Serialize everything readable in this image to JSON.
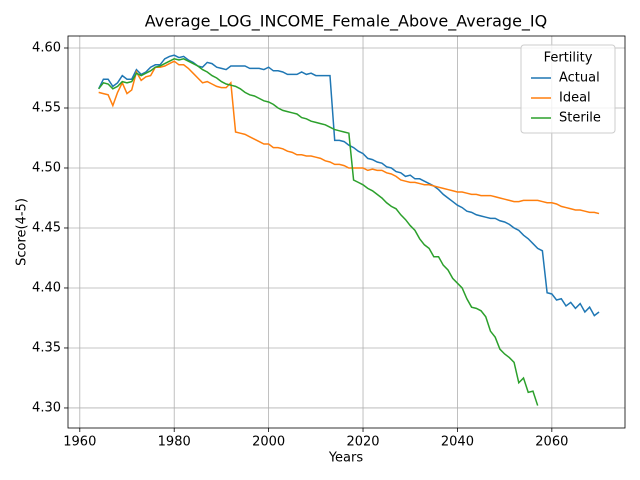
{
  "chart_data": {
    "type": "line",
    "title": "Average_LOG_INCOME_Female_Above_Average_IQ",
    "xlabel": "Years",
    "ylabel": "Score(4-5)",
    "x": [
      1964,
      1965,
      1966,
      1967,
      1968,
      1969,
      1970,
      1971,
      1972,
      1973,
      1974,
      1975,
      1976,
      1977,
      1978,
      1979,
      1980,
      1981,
      1982,
      1983,
      1984,
      1985,
      1986,
      1987,
      1988,
      1989,
      1990,
      1991,
      1992,
      1993,
      1994,
      1995,
      1996,
      1997,
      1998,
      1999,
      2000,
      2001,
      2002,
      2003,
      2004,
      2005,
      2006,
      2007,
      2008,
      2009,
      2010,
      2011,
      2012,
      2013,
      2014,
      2015,
      2016,
      2017,
      2018,
      2019,
      2020,
      2021,
      2022,
      2023,
      2024,
      2025,
      2026,
      2027,
      2028,
      2029,
      2030,
      2031,
      2032,
      2033,
      2034,
      2035,
      2036,
      2037,
      2038,
      2039,
      2040,
      2041,
      2042,
      2043,
      2044,
      2045,
      2046,
      2047,
      2048,
      2049,
      2050,
      2051,
      2052,
      2053,
      2054,
      2055,
      2056,
      2057,
      2058,
      2059,
      2060,
      2061,
      2062,
      2063,
      2064,
      2065,
      2066,
      2067,
      2068,
      2069,
      2070
    ],
    "series": [
      {
        "name": "Actual",
        "color": "#1f77b4",
        "values": [
          4.566,
          4.574,
          4.574,
          4.568,
          4.571,
          4.577,
          4.574,
          4.574,
          4.582,
          4.578,
          4.58,
          4.584,
          4.586,
          4.586,
          4.591,
          4.593,
          4.594,
          4.592,
          4.593,
          4.59,
          4.588,
          4.585,
          4.584,
          4.588,
          4.587,
          4.584,
          4.583,
          4.582,
          4.585,
          4.585,
          4.585,
          4.585,
          4.583,
          4.583,
          4.583,
          4.582,
          4.584,
          4.581,
          4.581,
          4.58,
          4.578,
          4.578,
          4.578,
          4.58,
          4.578,
          4.579,
          4.577,
          4.577,
          4.577,
          4.577,
          4.523,
          4.523,
          4.522,
          4.519,
          4.517,
          4.514,
          4.512,
          4.508,
          4.507,
          4.505,
          4.504,
          4.501,
          4.5,
          4.497,
          4.496,
          4.493,
          4.494,
          4.491,
          4.491,
          4.489,
          4.487,
          4.485,
          4.482,
          4.478,
          4.475,
          4.472,
          4.469,
          4.467,
          4.464,
          4.463,
          4.461,
          4.46,
          4.459,
          4.458,
          4.458,
          4.456,
          4.455,
          4.453,
          4.45,
          4.448,
          4.444,
          4.441,
          4.437,
          4.433,
          4.431,
          4.396,
          4.395,
          4.39,
          4.391,
          4.385,
          4.388,
          4.383,
          4.387,
          4.38,
          4.384,
          4.377,
          4.38
        ]
      },
      {
        "name": "Ideal",
        "color": "#ff7f0e",
        "values": [
          4.563,
          4.562,
          4.561,
          4.552,
          4.563,
          4.571,
          4.562,
          4.565,
          4.58,
          4.573,
          4.576,
          4.577,
          4.584,
          4.584,
          4.585,
          4.587,
          4.589,
          4.586,
          4.586,
          4.583,
          4.579,
          4.575,
          4.571,
          4.572,
          4.57,
          4.568,
          4.567,
          4.567,
          4.571,
          4.53,
          4.529,
          4.528,
          4.526,
          4.524,
          4.522,
          4.52,
          4.52,
          4.517,
          4.517,
          4.516,
          4.514,
          4.513,
          4.511,
          4.511,
          4.51,
          4.51,
          4.509,
          4.508,
          4.506,
          4.505,
          4.503,
          4.503,
          4.502,
          4.5,
          4.5,
          4.5,
          4.5,
          4.498,
          4.499,
          4.498,
          4.498,
          4.496,
          4.495,
          4.493,
          4.49,
          4.489,
          4.488,
          4.488,
          4.487,
          4.486,
          4.486,
          4.485,
          4.484,
          4.483,
          4.482,
          4.481,
          4.48,
          4.48,
          4.479,
          4.478,
          4.478,
          4.477,
          4.477,
          4.477,
          4.476,
          4.475,
          4.474,
          4.473,
          4.472,
          4.472,
          4.473,
          4.473,
          4.473,
          4.473,
          4.472,
          4.471,
          4.471,
          4.47,
          4.468,
          4.467,
          4.466,
          4.465,
          4.465,
          4.464,
          4.463,
          4.463,
          4.462
        ]
      },
      {
        "name": "Sterile",
        "color": "#2ca02c",
        "values": [
          4.566,
          4.571,
          4.57,
          4.566,
          4.568,
          4.572,
          4.571,
          4.572,
          4.579,
          4.577,
          4.579,
          4.581,
          4.584,
          4.585,
          4.587,
          4.589,
          4.591,
          4.59,
          4.591,
          4.589,
          4.587,
          4.585,
          4.582,
          4.58,
          4.577,
          4.575,
          4.572,
          4.57,
          4.569,
          4.568,
          4.566,
          4.563,
          4.561,
          4.56,
          4.558,
          4.556,
          4.555,
          4.553,
          4.55,
          4.548,
          4.547,
          4.546,
          4.545,
          4.542,
          4.541,
          4.539,
          4.538,
          4.537,
          4.536,
          4.534,
          4.532,
          4.531,
          4.53,
          4.529,
          4.49,
          4.488,
          4.486,
          4.483,
          4.481,
          4.478,
          4.475,
          4.471,
          4.468,
          4.466,
          4.461,
          4.457,
          4.452,
          4.448,
          4.441,
          4.436,
          4.433,
          4.426,
          4.426,
          4.419,
          4.415,
          4.408,
          4.404,
          4.4,
          4.391,
          4.384,
          4.383,
          4.381,
          4.376,
          4.364,
          4.359,
          4.349,
          4.345,
          4.342,
          4.338,
          4.321,
          4.325,
          4.313,
          4.314,
          4.302,
          null,
          null,
          null,
          null,
          null,
          null,
          null,
          null,
          null,
          null,
          null,
          null,
          null
        ]
      }
    ],
    "xlim": [
      1957.5,
      2075.5
    ],
    "ylim": [
      4.2833,
      4.61
    ],
    "xticks": [
      1960,
      1980,
      2000,
      2020,
      2040,
      2060
    ],
    "yticks": [
      {
        "value": 4.3,
        "label": "4.30"
      },
      {
        "value": 4.35,
        "label": "4.35"
      },
      {
        "value": 4.4,
        "label": "4.40"
      },
      {
        "value": 4.45,
        "label": "4.45"
      },
      {
        "value": 4.5,
        "label": "4.50"
      },
      {
        "value": 4.55,
        "label": "4.55"
      },
      {
        "value": 4.6,
        "label": "4.60"
      }
    ],
    "grid": true,
    "legend_title": "Fertility",
    "legend_loc": "upper right"
  }
}
